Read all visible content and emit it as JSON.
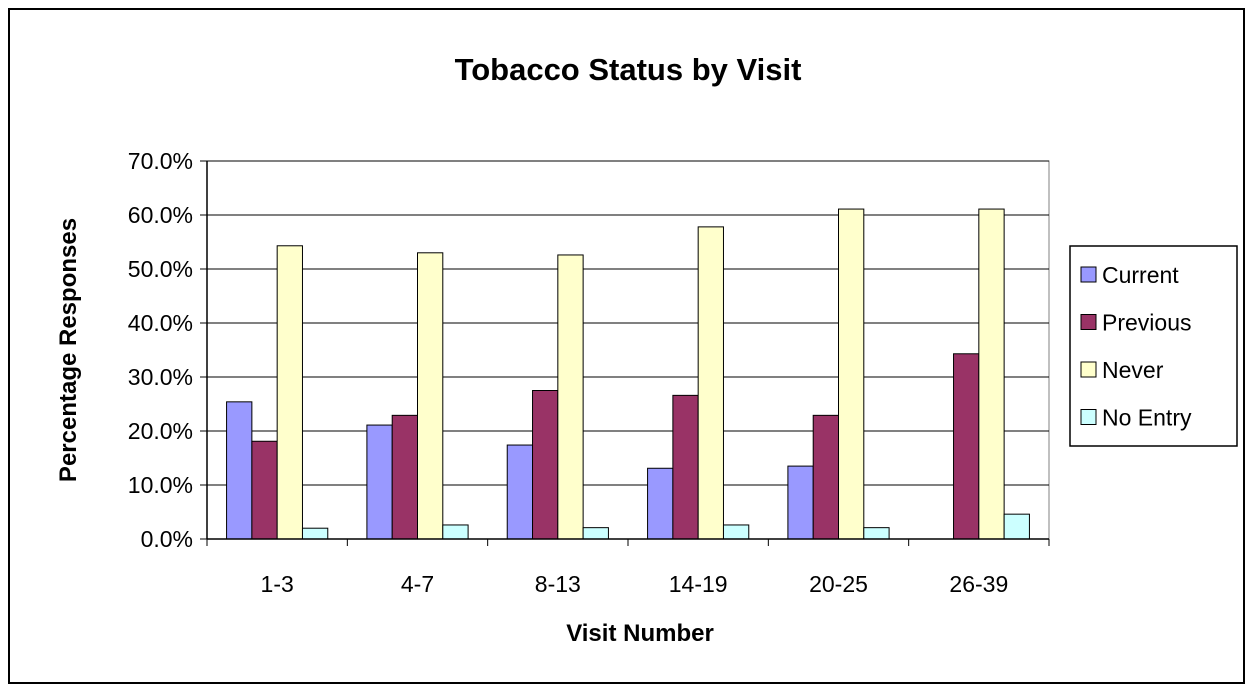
{
  "chart_data": {
    "type": "bar",
    "title": "Tobacco Status by Visit",
    "xlabel": "Visit Number",
    "ylabel": "Percentage Responses",
    "ylim": [
      0,
      70
    ],
    "y_ticks": [
      0,
      10,
      20,
      30,
      40,
      50,
      60,
      70
    ],
    "y_tick_labels": [
      "0.0%",
      "10.0%",
      "20.0%",
      "30.0%",
      "40.0%",
      "50.0%",
      "60.0%",
      "70.0%"
    ],
    "grid": true,
    "legend_position": "right",
    "categories": [
      "1-3",
      "4-7",
      "8-13",
      "14-19",
      "20-25",
      "26-39"
    ],
    "series": [
      {
        "name": "Current",
        "color": "#9999ff",
        "values": [
          25.4,
          21.1,
          17.4,
          13.1,
          13.5,
          0.0
        ]
      },
      {
        "name": "Previous",
        "color": "#993366",
        "values": [
          18.1,
          22.9,
          27.5,
          26.6,
          22.9,
          34.3
        ]
      },
      {
        "name": "Never",
        "color": "#ffffcc",
        "values": [
          54.3,
          53.0,
          52.6,
          57.8,
          61.1,
          61.1
        ]
      },
      {
        "name": "No Entry",
        "color": "#ccffff",
        "values": [
          2.0,
          2.6,
          2.1,
          2.6,
          2.1,
          4.6
        ]
      }
    ]
  }
}
